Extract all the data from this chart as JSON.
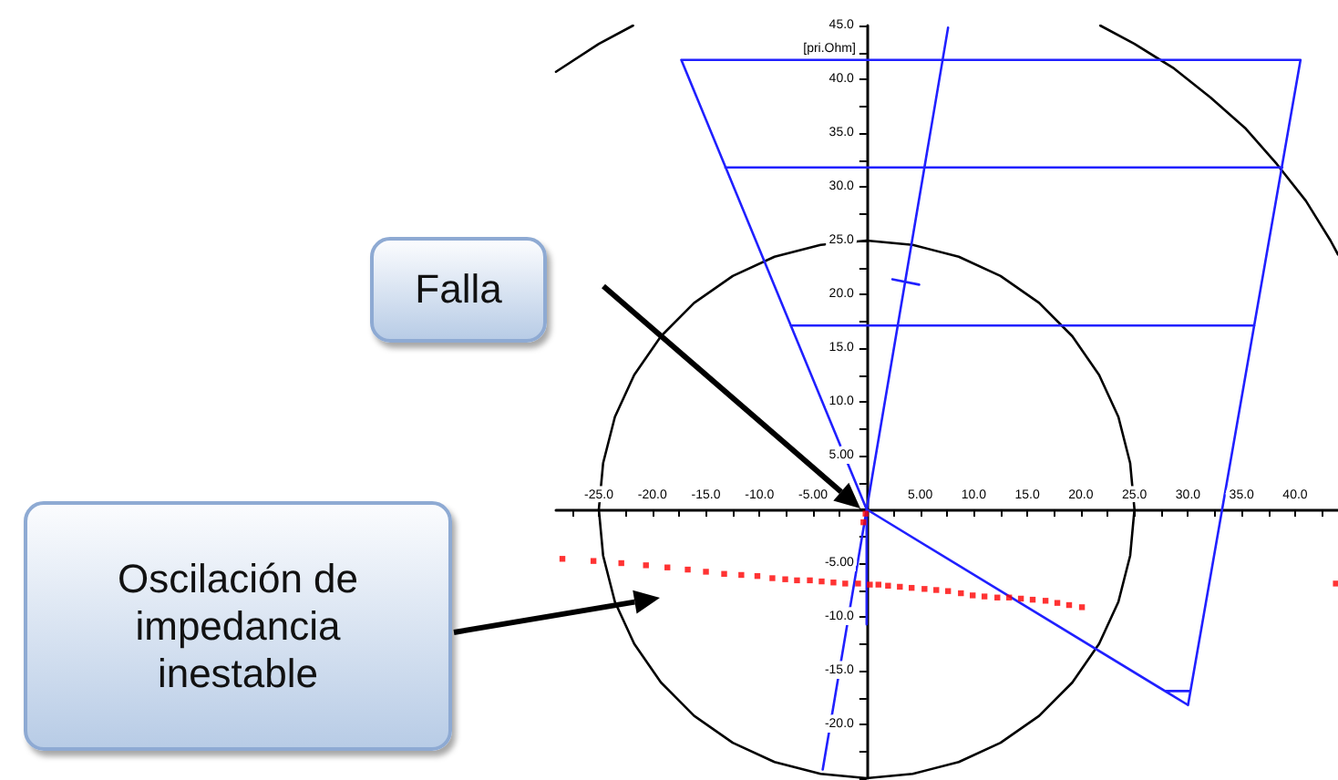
{
  "chart_data": {
    "type": "line",
    "ylabel": "[pri.Ohm]",
    "xlim": [
      -29,
      44
    ],
    "ylim": [
      -25,
      45
    ],
    "grid": false,
    "xticks": [
      {
        "value": -27.5,
        "label": null
      },
      {
        "value": -25,
        "label": "-25.0"
      },
      {
        "value": -22.5,
        "label": null
      },
      {
        "value": -20,
        "label": "-20.0"
      },
      {
        "value": -17.5,
        "label": null
      },
      {
        "value": -15,
        "label": "-15.0"
      },
      {
        "value": -12.5,
        "label": null
      },
      {
        "value": -10,
        "label": "-10.0"
      },
      {
        "value": -7.5,
        "label": null
      },
      {
        "value": -5,
        "label": "-5.00"
      },
      {
        "value": -2.5,
        "label": null
      },
      {
        "value": 0,
        "label": null
      },
      {
        "value": 2.5,
        "label": null
      },
      {
        "value": 5,
        "label": "5.00"
      },
      {
        "value": 7.5,
        "label": null
      },
      {
        "value": 10,
        "label": "10.0"
      },
      {
        "value": 12.5,
        "label": null
      },
      {
        "value": 15,
        "label": "15.0"
      },
      {
        "value": 17.5,
        "label": null
      },
      {
        "value": 20,
        "label": "20.0"
      },
      {
        "value": 22.5,
        "label": null
      },
      {
        "value": 25,
        "label": "25.0"
      },
      {
        "value": 27.5,
        "label": null
      },
      {
        "value": 30,
        "label": "30.0"
      },
      {
        "value": 32.5,
        "label": null
      },
      {
        "value": 35,
        "label": "35.0"
      },
      {
        "value": 37.5,
        "label": null
      },
      {
        "value": 40,
        "label": "40.0"
      },
      {
        "value": 42.5,
        "label": null
      }
    ],
    "yticks": [
      {
        "value": -25,
        "label": null
      },
      {
        "value": -22.5,
        "label": null
      },
      {
        "value": -20,
        "label": "-20.0"
      },
      {
        "value": -17.5,
        "label": null
      },
      {
        "value": -15,
        "label": "-15.0"
      },
      {
        "value": -12.5,
        "label": null
      },
      {
        "value": -10,
        "label": "-10.0"
      },
      {
        "value": -7.5,
        "label": null
      },
      {
        "value": -5,
        "label": "-5.00"
      },
      {
        "value": -2.5,
        "label": null
      },
      {
        "value": 0,
        "label": null
      },
      {
        "value": 2.5,
        "label": null
      },
      {
        "value": 5,
        "label": "5.00"
      },
      {
        "value": 7.5,
        "label": null
      },
      {
        "value": 10,
        "label": "10.0"
      },
      {
        "value": 12.5,
        "label": null
      },
      {
        "value": 15,
        "label": "15.0"
      },
      {
        "value": 17.5,
        "label": null
      },
      {
        "value": 20,
        "label": "20.0"
      },
      {
        "value": 22.5,
        "label": null
      },
      {
        "value": 25,
        "label": "25.0"
      },
      {
        "value": 27.5,
        "label": null
      },
      {
        "value": 30,
        "label": "30.0"
      },
      {
        "value": 32.5,
        "label": null
      },
      {
        "value": 35,
        "label": "35.0"
      },
      {
        "value": 37.5,
        "label": null
      },
      {
        "value": 40,
        "label": "40.0"
      },
      {
        "value": 42.5,
        "label": null
      },
      {
        "value": 45,
        "label": "45.0"
      }
    ],
    "annotations": [
      "Falla",
      "Oscilación de impedancia inestable"
    ],
    "series": [
      {
        "color": "#000000",
        "marker": "none",
        "x": [
          25,
          24.6,
          23.5,
          21.7,
          19.2,
          16.1,
          12.5,
          8.6,
          4.3,
          0,
          -4.3,
          -8.6,
          -12.5,
          -16.1,
          -19.2,
          -21.7,
          -23.5,
          -24.6,
          -25,
          null,
          -25,
          -24.6,
          -23.5,
          -21.7,
          -19.2,
          -16.1,
          -12.5,
          -8.6,
          -4.3,
          0,
          4.3,
          8.6,
          12.5,
          16.1,
          19.2,
          21.7,
          23.5,
          24.6,
          25,
          null,
          -21.8,
          -25,
          -29,
          null,
          21.8,
          25,
          28.7,
          32.1,
          35.4,
          38.3,
          41,
          43.3,
          44
        ],
        "values": [
          0,
          4.3,
          8.6,
          12.5,
          16.1,
          19.2,
          21.7,
          23.5,
          24.6,
          25,
          24.6,
          23.5,
          21.7,
          19.2,
          16.1,
          12.5,
          8.6,
          4.3,
          0,
          null,
          0,
          -4.3,
          -8.6,
          -12.5,
          -16.1,
          -19.2,
          -21.7,
          -23.5,
          -24.6,
          -25,
          -24.6,
          -23.5,
          -21.7,
          -19.2,
          -16.1,
          -12.5,
          -8.6,
          -4.3,
          0,
          null,
          45,
          43.3,
          40.7,
          null,
          45,
          43.3,
          41,
          38.3,
          35.4,
          32.1,
          28.7,
          25,
          23.7
        ]
      },
      {
        "color": "#2020ff",
        "marker": "none",
        "x": [
          0,
          -17.3,
          null,
          -17.3,
          40.5,
          null,
          40.5,
          30,
          null,
          30,
          0,
          null,
          -13.2,
          38.8,
          null,
          -7.1,
          36.2,
          null,
          27.9,
          30.2,
          null,
          -4.1,
          7.6,
          null,
          0,
          0,
          null,
          2.4,
          4.9
        ],
        "values": [
          0,
          41.8,
          null,
          41.8,
          41.8,
          null,
          41.8,
          -18.2,
          null,
          -18.2,
          0,
          null,
          31.8,
          31.8,
          null,
          17.1,
          17.1,
          null,
          -16.9,
          -16.9,
          null,
          -24.2,
          44.8,
          null,
          0,
          -10.7,
          null,
          21.4,
          20.9
        ]
      },
      {
        "type": "scatter",
        "color": "#ff0000",
        "marker": "square",
        "x": [
          -28.4,
          -25.5,
          -22.9,
          -20.6,
          -18.6,
          -16.7,
          -15.0,
          -13.3,
          -11.7,
          -10.2,
          -8.8,
          -7.6,
          -6.5,
          -5.3,
          -4.2,
          -3.1,
          -2.0,
          -0.8,
          0.3,
          1.1,
          2.0,
          3.1,
          4.2,
          5.4,
          6.5,
          7.6,
          8.8,
          9.9,
          11.0,
          12.2,
          13.3,
          14.4,
          15.5,
          16.7,
          17.8,
          18.9,
          20.1,
          43.8,
          -0.1,
          -0.3
        ],
        "values": [
          -4.6,
          -4.8,
          -5.0,
          -5.2,
          -5.4,
          -5.6,
          -5.8,
          -6.0,
          -6.1,
          -6.2,
          -6.4,
          -6.5,
          -6.6,
          -6.6,
          -6.7,
          -6.8,
          -6.9,
          -6.9,
          -7.0,
          -7.0,
          -7.1,
          -7.2,
          -7.3,
          -7.4,
          -7.5,
          -7.6,
          -7.8,
          -8.0,
          -8.1,
          -8.2,
          -8.2,
          -8.3,
          -8.4,
          -8.5,
          -8.7,
          -8.9,
          -9.1,
          -6.9,
          -0.4,
          -1.2
        ]
      }
    ]
  }
}
